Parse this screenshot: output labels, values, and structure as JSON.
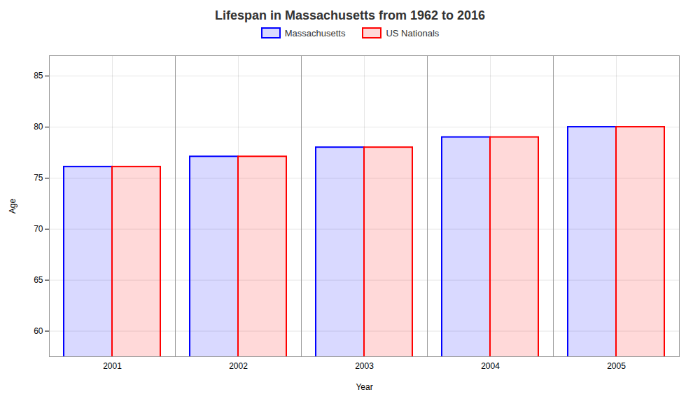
{
  "chart_data": {
    "type": "bar",
    "title": "Lifespan in Massachusetts from 1962 to 2016",
    "xlabel": "Year",
    "ylabel": "Age",
    "categories": [
      "2001",
      "2002",
      "2003",
      "2004",
      "2005"
    ],
    "series": [
      {
        "name": "Massachusetts",
        "color": "#0000ff",
        "values": [
          76.1,
          77.1,
          78.0,
          79.0,
          80.0
        ]
      },
      {
        "name": "US Nationals",
        "color": "#ff0000",
        "values": [
          76.1,
          77.1,
          78.0,
          79.0,
          80.0
        ]
      }
    ],
    "ylim": [
      57.5,
      87
    ],
    "yticks": [
      60,
      65,
      70,
      75,
      80,
      85
    ],
    "grid": true,
    "legend": "top"
  }
}
